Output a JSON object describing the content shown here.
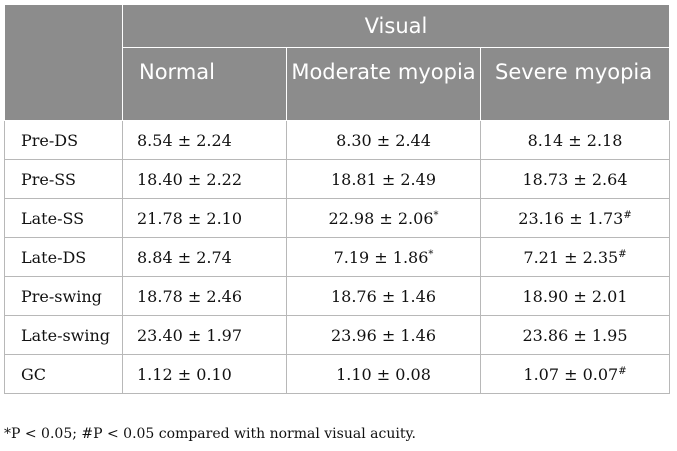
{
  "header": {
    "group": "Visual",
    "columns": [
      "Normal",
      "Moderate myopia",
      "Severe myopia"
    ]
  },
  "rows": [
    {
      "label": "Pre-DS",
      "normal": "8.54 ± 2.24",
      "moderate": "8.30 ± 2.44",
      "moderate_mark": "",
      "severe": "8.14 ± 2.18",
      "severe_mark": ""
    },
    {
      "label": "Pre-SS",
      "normal": "18.40 ± 2.22",
      "moderate": "18.81 ± 2.49",
      "moderate_mark": "",
      "severe": "18.73 ± 2.64",
      "severe_mark": ""
    },
    {
      "label": "Late-SS",
      "normal": "21.78 ± 2.10",
      "moderate": "22.98 ± 2.06",
      "moderate_mark": "*",
      "severe": "23.16 ± 1.73",
      "severe_mark": "#"
    },
    {
      "label": "Late-DS",
      "normal": "8.84 ± 2.74",
      "moderate": "7.19 ± 1.86",
      "moderate_mark": "*",
      "severe": "7.21 ± 2.35",
      "severe_mark": "#"
    },
    {
      "label": "Pre-swing",
      "normal": "18.78 ± 2.46",
      "moderate": "18.76 ± 1.46",
      "moderate_mark": "",
      "severe": "18.90 ± 2.01",
      "severe_mark": ""
    },
    {
      "label": "Late-swing",
      "normal": "23.40 ± 1.97",
      "moderate": "23.96 ± 1.46",
      "moderate_mark": "",
      "severe": "23.86 ± 1.95",
      "severe_mark": ""
    },
    {
      "label": "GC",
      "normal": "1.12 ± 0.10",
      "moderate": "1.10 ± 0.08",
      "moderate_mark": "",
      "severe": "1.07 ± 0.07",
      "severe_mark": "#"
    }
  ],
  "footnote": "*P < 0.05; #P < 0.05 compared with normal visual acuity."
}
